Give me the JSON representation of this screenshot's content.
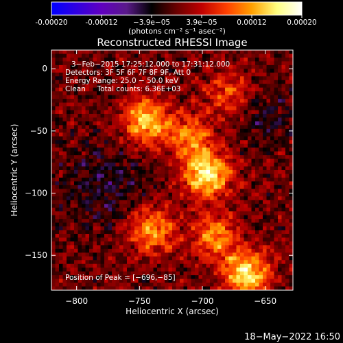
{
  "colorbar": {
    "ticks": [
      "-0.00020",
      "-0.00012",
      "−3.9e−05",
      "3.9e−05",
      "0.00012",
      "0.00020"
    ],
    "unit_label": "(photons cm⁻² s⁻¹ asec⁻²)",
    "colors": [
      "#0000ff",
      "#3000e0",
      "#6000c0",
      "#5a1a8a",
      "#000000",
      "#6a0000",
      "#c00000",
      "#ff4000",
      "#ffa000",
      "#ffff80",
      "#ffffff"
    ]
  },
  "chart_data": {
    "type": "heatmap",
    "title": "Reconstructed RHESSI Image",
    "xlabel": "Heliocentric X (arcsec)",
    "ylabel": "Heliocentric Y (arcsec)",
    "xlim": [
      -820,
      -628
    ],
    "ylim": [
      -178,
      15
    ],
    "xticks": [
      -800,
      -750,
      -700,
      -650
    ],
    "yticks": [
      0,
      -50,
      -100,
      -150
    ],
    "xtick_labels": [
      "−800",
      "−750",
      "−700",
      "−650"
    ],
    "ytick_labels": [
      "0",
      "−50",
      "−100",
      "−150"
    ],
    "value_range": [
      -0.0002,
      0.0002
    ],
    "peak": [
      -696,
      -85
    ],
    "bright_regions": [
      {
        "x": -745,
        "y": -42,
        "level": 0.85
      },
      {
        "x": -696,
        "y": -85,
        "level": 1.0
      },
      {
        "x": -665,
        "y": -165,
        "level": 0.95
      },
      {
        "x": -740,
        "y": -130,
        "level": 0.7
      },
      {
        "x": -690,
        "y": -135,
        "level": 0.65
      },
      {
        "x": -710,
        "y": -55,
        "level": 0.6
      },
      {
        "x": -680,
        "y": -20,
        "level": 0.45
      }
    ]
  },
  "annotations": [
    "3−Feb−2015 17:25:12.000 to 17:31:12.000",
    "Detectors: 3F 5F 6F 7F 8F 9F, Att 0",
    "Energy Range: 25.0 − 50.0 keV",
    "Clean     Total counts: 6.36E+03"
  ],
  "peak_label": "Position of Peak = [−696,−85]",
  "footer_date": "18−May−2022 16:50"
}
